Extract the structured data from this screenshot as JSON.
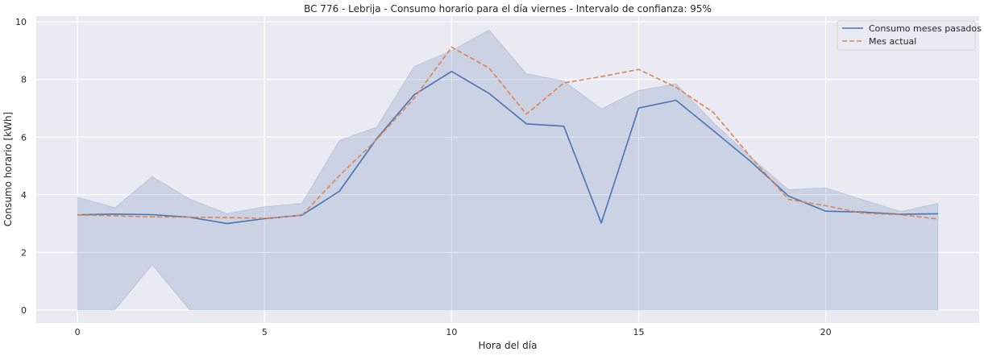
{
  "chart_data": {
    "type": "line",
    "title": "BC 776 - Lebrija - Consumo horario para el día viernes - Intervalo de confianza: 95%",
    "xlabel": "Hora del día",
    "ylabel": "Consumo horario [kWh]",
    "xlim": [
      -1.1,
      24.1
    ],
    "ylim": [
      -0.45,
      10.2
    ],
    "xticks": [
      0,
      5,
      10,
      15,
      20
    ],
    "yticks": [
      0,
      2,
      4,
      6,
      8,
      10
    ],
    "grid": true,
    "legend_position": "top-right",
    "x": [
      0,
      1,
      2,
      3,
      4,
      5,
      6,
      7,
      8,
      9,
      10,
      11,
      12,
      13,
      14,
      15,
      16,
      17,
      18,
      19,
      20,
      21,
      22,
      23
    ],
    "series": [
      {
        "name": "Consumo meses pasados",
        "style": "solid",
        "color": "#4c72b0",
        "values": [
          3.3,
          3.33,
          3.31,
          3.22,
          3.0,
          3.17,
          3.29,
          4.12,
          5.95,
          7.47,
          8.28,
          7.52,
          6.46,
          6.38,
          3.02,
          7.01,
          7.28,
          6.22,
          5.15,
          3.96,
          3.43,
          3.4,
          3.32,
          3.34
        ]
      },
      {
        "name": "Mes actual",
        "style": "dashed",
        "color": "#dd8452",
        "values": [
          3.3,
          3.27,
          3.23,
          3.22,
          3.21,
          3.18,
          3.29,
          4.66,
          5.92,
          7.35,
          9.12,
          8.4,
          6.8,
          7.88,
          8.1,
          8.35,
          7.73,
          6.85,
          5.3,
          3.84,
          3.62,
          3.36,
          3.31,
          3.16
        ]
      }
    ],
    "confidence_band": {
      "series": "Consumo meses pasados",
      "color": "#4c72b0",
      "upper": [
        3.92,
        3.55,
        4.63,
        3.85,
        3.35,
        3.58,
        3.7,
        5.88,
        6.35,
        8.45,
        9.0,
        9.72,
        8.2,
        7.95,
        6.98,
        7.62,
        7.85,
        6.5,
        5.3,
        4.18,
        4.24,
        3.82,
        3.42,
        3.7
      ],
      "lower": [
        0,
        0,
        1.57,
        0,
        0,
        0,
        0,
        0,
        0,
        0,
        0,
        0,
        0,
        0,
        0,
        0,
        0,
        0,
        0,
        0,
        0,
        0,
        0,
        0
      ]
    }
  }
}
